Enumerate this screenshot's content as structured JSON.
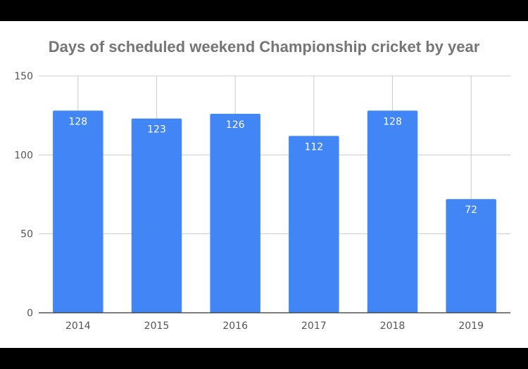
{
  "chart_data": {
    "type": "bar",
    "title": "Days of scheduled weekend Championship cricket by year",
    "xlabel": "",
    "ylabel": "",
    "categories": [
      "2014",
      "2015",
      "2016",
      "2017",
      "2018",
      "2019"
    ],
    "values": [
      128,
      123,
      126,
      112,
      128,
      72
    ],
    "data_labels": [
      "128",
      "123",
      "126",
      "112",
      "128",
      "72"
    ],
    "ylim": [
      0,
      150
    ],
    "yticks": [
      0,
      50,
      100,
      150
    ],
    "ytick_labels": [
      "0",
      "50",
      "100",
      "150"
    ],
    "grid": true,
    "legend": "none",
    "colors": {
      "bar": "#4285f4",
      "grid": "#cccccc",
      "axis": "#333333",
      "title": "#757575"
    }
  }
}
